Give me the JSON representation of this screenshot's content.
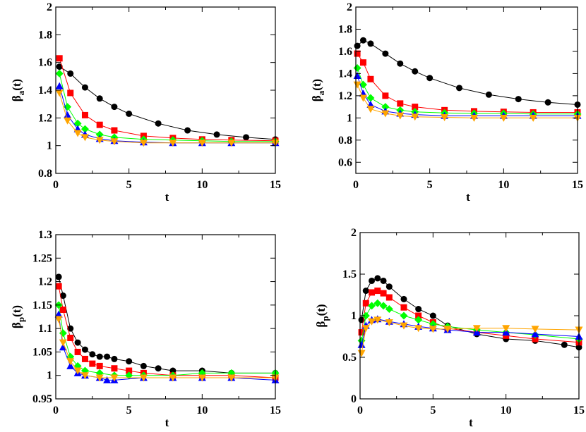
{
  "chart_data": [
    {
      "type": "scatter",
      "xlabel": "t",
      "ylabel_base": "β",
      "ylabel_sub": "a",
      "ylabel_arg": "(t)",
      "xlim": [
        0,
        15
      ],
      "ylim": [
        0.8,
        2
      ],
      "xticks": [
        "0",
        "5",
        "10",
        "15"
      ],
      "yticks": [
        "0.8",
        "1",
        "1.2",
        "1.4",
        "1.6",
        "1.8",
        "2"
      ],
      "series": [
        {
          "name": "black",
          "color": "#000000",
          "marker": "circle",
          "x": [
            0.25,
            1,
            2,
            3,
            4,
            5,
            7,
            9,
            11,
            13,
            15
          ],
          "y": [
            1.57,
            1.52,
            1.42,
            1.34,
            1.28,
            1.23,
            1.16,
            1.11,
            1.08,
            1.06,
            1.045
          ]
        },
        {
          "name": "red",
          "color": "#ff0000",
          "marker": "square",
          "x": [
            0.25,
            1,
            2,
            3,
            4,
            6,
            8,
            10,
            12,
            15
          ],
          "y": [
            1.63,
            1.38,
            1.22,
            1.15,
            1.11,
            1.07,
            1.055,
            1.045,
            1.04,
            1.035
          ]
        },
        {
          "name": "green",
          "color": "#00ff00",
          "marker": "diamond",
          "x": [
            0.25,
            0.8,
            1.5,
            2,
            3,
            4,
            6,
            8,
            10,
            12,
            15
          ],
          "y": [
            1.52,
            1.28,
            1.16,
            1.12,
            1.08,
            1.06,
            1.045,
            1.04,
            1.035,
            1.03,
            1.03
          ]
        },
        {
          "name": "blue",
          "color": "#0000ff",
          "marker": "triangle-up",
          "x": [
            0.25,
            0.8,
            1.5,
            2,
            3,
            4,
            6,
            8,
            10,
            12,
            15
          ],
          "y": [
            1.43,
            1.22,
            1.12,
            1.08,
            1.05,
            1.035,
            1.025,
            1.02,
            1.02,
            1.02,
            1.02
          ]
        },
        {
          "name": "orange",
          "color": "#ffa500",
          "marker": "triangle-down",
          "x": [
            0.25,
            0.8,
            1.5,
            2,
            3,
            4,
            6,
            8,
            10,
            12,
            15
          ],
          "y": [
            1.38,
            1.18,
            1.09,
            1.06,
            1.04,
            1.03,
            1.02,
            1.02,
            1.02,
            1.02,
            1.02
          ]
        }
      ]
    },
    {
      "type": "scatter",
      "xlabel": "t",
      "ylabel_base": "β",
      "ylabel_sub": "a",
      "ylabel_arg": "(t)",
      "xlim": [
        0,
        15
      ],
      "ylim": [
        0.5,
        2
      ],
      "xticks": [
        "0",
        "5",
        "10",
        "15"
      ],
      "yticks": [
        "0.6",
        "0.8",
        "1",
        "1.2",
        "1.4",
        "1.6",
        "1.8",
        "2"
      ],
      "series": [
        {
          "name": "black",
          "color": "#000000",
          "marker": "circle",
          "x": [
            0.1,
            0.5,
            1,
            2,
            3,
            4,
            5,
            7,
            9,
            11,
            13,
            15
          ],
          "y": [
            1.65,
            1.7,
            1.67,
            1.58,
            1.49,
            1.42,
            1.36,
            1.27,
            1.21,
            1.17,
            1.14,
            1.12
          ]
        },
        {
          "name": "red",
          "color": "#ff0000",
          "marker": "square",
          "x": [
            0.1,
            0.5,
            1,
            2,
            3,
            4,
            6,
            8,
            10,
            12,
            15
          ],
          "y": [
            1.58,
            1.5,
            1.35,
            1.2,
            1.13,
            1.1,
            1.07,
            1.06,
            1.055,
            1.05,
            1.05
          ]
        },
        {
          "name": "green",
          "color": "#00ff00",
          "marker": "diamond",
          "x": [
            0.1,
            0.5,
            1,
            2,
            3,
            4,
            6,
            8,
            10,
            12,
            15
          ],
          "y": [
            1.45,
            1.3,
            1.18,
            1.1,
            1.07,
            1.055,
            1.045,
            1.04,
            1.04,
            1.035,
            1.035
          ]
        },
        {
          "name": "blue",
          "color": "#0000ff",
          "marker": "triangle-up",
          "x": [
            0.1,
            0.5,
            1,
            2,
            3,
            4,
            6,
            8,
            10,
            12,
            15
          ],
          "y": [
            1.38,
            1.22,
            1.12,
            1.06,
            1.04,
            1.03,
            1.02,
            1.02,
            1.02,
            1.02,
            1.02
          ]
        },
        {
          "name": "orange",
          "color": "#ffa500",
          "marker": "triangle-down",
          "x": [
            0.1,
            0.5,
            1,
            2,
            3,
            4,
            6,
            8,
            10,
            12,
            15
          ],
          "y": [
            1.3,
            1.18,
            1.08,
            1.04,
            1.02,
            1.01,
            1.005,
            1.0,
            1.0,
            1.0,
            1.0
          ]
        }
      ]
    },
    {
      "type": "scatter",
      "xlabel": "t",
      "ylabel_base": "β",
      "ylabel_sub": "p",
      "ylabel_arg": "(t)",
      "xlim": [
        0,
        15
      ],
      "ylim": [
        0.95,
        1.3
      ],
      "xticks": [
        "0",
        "5",
        "10",
        "15"
      ],
      "yticks": [
        "0.95",
        "1",
        "1.05",
        "1.1",
        "1.15",
        "1.2",
        "1.25",
        "1.3"
      ],
      "series": [
        {
          "name": "black",
          "color": "#000000",
          "marker": "circle",
          "x": [
            0.2,
            0.5,
            1,
            1.5,
            2,
            2.5,
            3,
            3.5,
            4,
            5,
            6,
            7,
            8,
            10,
            12,
            15
          ],
          "y": [
            1.21,
            1.17,
            1.1,
            1.07,
            1.055,
            1.045,
            1.04,
            1.04,
            1.035,
            1.03,
            1.02,
            1.015,
            1.01,
            1.01,
            1.005,
            1.005
          ]
        },
        {
          "name": "red",
          "color": "#ff0000",
          "marker": "square",
          "x": [
            0.2,
            0.5,
            1,
            1.5,
            2,
            2.5,
            3,
            4,
            5,
            6,
            8,
            10,
            12,
            15
          ],
          "y": [
            1.19,
            1.14,
            1.08,
            1.05,
            1.035,
            1.025,
            1.02,
            1.015,
            1.01,
            1.005,
            1.0,
            1.0,
            1.0,
            0.995
          ]
        },
        {
          "name": "green",
          "color": "#00ff00",
          "marker": "diamond",
          "x": [
            0.2,
            0.5,
            1,
            1.5,
            2,
            3,
            4,
            5,
            6,
            8,
            10,
            12,
            15
          ],
          "y": [
            1.15,
            1.09,
            1.04,
            1.02,
            1.01,
            1.005,
            1.0,
            1.0,
            1.0,
            1.0,
            1.005,
            1.005,
            1.005
          ]
        },
        {
          "name": "blue",
          "color": "#0000ff",
          "marker": "triangle-up",
          "x": [
            0.2,
            0.5,
            1,
            1.5,
            2,
            3,
            3.5,
            4,
            6,
            8,
            10,
            12,
            15
          ],
          "y": [
            1.13,
            1.06,
            1.02,
            1.005,
            1.0,
            0.995,
            0.99,
            0.99,
            0.995,
            0.995,
            0.995,
            0.995,
            0.99
          ]
        },
        {
          "name": "orange",
          "color": "#ffa500",
          "marker": "triangle-down",
          "x": [
            0.2,
            0.5,
            1,
            1.5,
            2,
            3,
            4,
            6,
            8,
            10,
            12,
            15
          ],
          "y": [
            1.12,
            1.07,
            1.03,
            1.01,
            1.0,
            0.995,
            0.995,
            0.995,
            0.995,
            0.995,
            0.995,
            0.995
          ]
        }
      ]
    },
    {
      "type": "scatter",
      "xlabel": "t",
      "ylabel_base": "β",
      "ylabel_sub": "p",
      "ylabel_arg": "(t)",
      "xlim": [
        0,
        15
      ],
      "ylim": [
        0,
        2
      ],
      "xticks": [
        "0",
        "5",
        "10",
        "15"
      ],
      "yticks": [
        "0",
        "0.5",
        "1",
        "1.5",
        "2"
      ],
      "series": [
        {
          "name": "black",
          "color": "#000000",
          "marker": "circle",
          "x": [
            0.1,
            0.4,
            0.8,
            1.2,
            1.6,
            2,
            3,
            4,
            5,
            6,
            8,
            10,
            12,
            14,
            15
          ],
          "y": [
            0.95,
            1.3,
            1.42,
            1.45,
            1.42,
            1.35,
            1.2,
            1.08,
            1.0,
            0.88,
            0.78,
            0.72,
            0.7,
            0.65,
            0.62
          ]
        },
        {
          "name": "red",
          "color": "#ff0000",
          "marker": "square",
          "x": [
            0.1,
            0.4,
            0.8,
            1.2,
            1.6,
            2,
            3,
            4,
            5,
            6,
            8,
            10,
            12,
            15
          ],
          "y": [
            0.8,
            1.15,
            1.28,
            1.3,
            1.27,
            1.22,
            1.1,
            1.0,
            0.92,
            0.85,
            0.8,
            0.76,
            0.72,
            0.68
          ]
        },
        {
          "name": "green",
          "color": "#00ff00",
          "marker": "diamond",
          "x": [
            0.1,
            0.4,
            0.8,
            1.2,
            1.6,
            2,
            3,
            4,
            5,
            6,
            8,
            10,
            12,
            15
          ],
          "y": [
            0.7,
            1.0,
            1.12,
            1.15,
            1.12,
            1.08,
            1.0,
            0.95,
            0.9,
            0.87,
            0.83,
            0.8,
            0.77,
            0.72
          ]
        },
        {
          "name": "blue",
          "color": "#0000ff",
          "marker": "triangle-up",
          "x": [
            0.1,
            0.4,
            0.8,
            1.2,
            2,
            3,
            4,
            5,
            6,
            8,
            10,
            12,
            15
          ],
          "y": [
            0.65,
            0.88,
            0.95,
            0.96,
            0.93,
            0.9,
            0.87,
            0.85,
            0.83,
            0.8,
            0.8,
            0.78,
            0.75
          ]
        },
        {
          "name": "orange",
          "color": "#ffa500",
          "marker": "triangle-down",
          "x": [
            0.1,
            0.4,
            0.8,
            1.2,
            2,
            3,
            4,
            5,
            6,
            8,
            10,
            12,
            15
          ],
          "y": [
            0.55,
            0.85,
            0.93,
            0.95,
            0.92,
            0.88,
            0.85,
            0.84,
            0.84,
            0.85,
            0.85,
            0.84,
            0.83
          ]
        }
      ]
    }
  ]
}
